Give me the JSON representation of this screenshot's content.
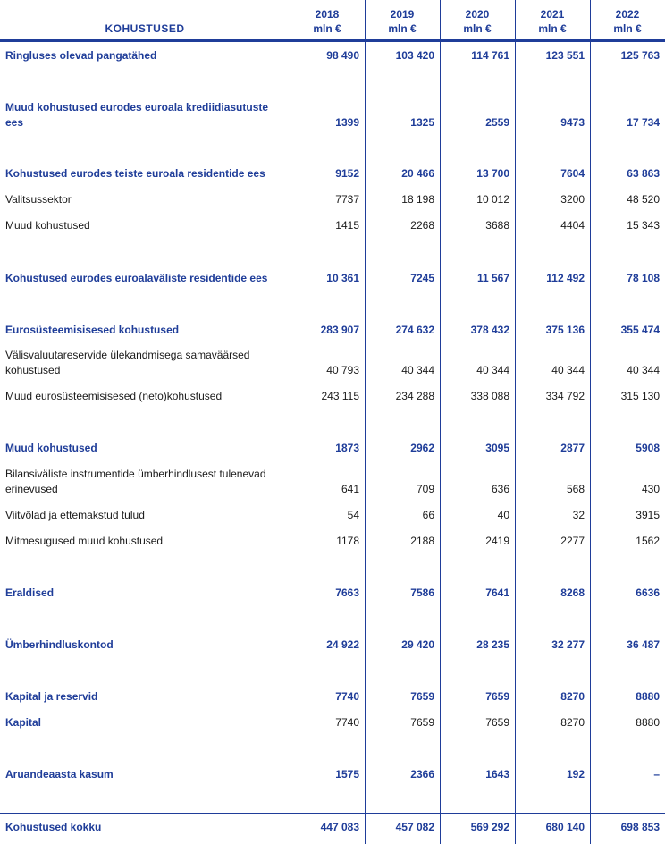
{
  "header": {
    "title": "KOHUSTUSED",
    "columns": [
      {
        "year": "2018",
        "unit": "mln €"
      },
      {
        "year": "2019",
        "unit": "mln €"
      },
      {
        "year": "2020",
        "unit": "mln €"
      },
      {
        "year": "2021",
        "unit": "mln €"
      },
      {
        "year": "2022",
        "unit": "mln €"
      }
    ]
  },
  "colors": {
    "accent": "#1f3d99",
    "text": "#1a1a1a"
  },
  "rows": [
    {
      "label": "Ringluses olevad pangatähed",
      "style": "bold",
      "values": [
        "98 490",
        "103 420",
        "114 761",
        "123 551",
        "125 763"
      ]
    },
    {
      "label": "Muud kohustused eurodes euroala krediidiasutuste ees",
      "style": "bold",
      "values": [
        "1399",
        "1325",
        "2559",
        "9473",
        "17 734"
      ]
    },
    {
      "label": "Kohustused eurodes teiste euroala residentide ees",
      "style": "bold",
      "values": [
        "9152",
        "20 466",
        "13 700",
        "7604",
        "63 863"
      ]
    },
    {
      "label": "Valitsussektor",
      "style": "normal",
      "values": [
        "7737",
        "18 198",
        "10 012",
        "3200",
        "48 520"
      ]
    },
    {
      "label": "Muud kohustused",
      "style": "normal",
      "values": [
        "1415",
        "2268",
        "3688",
        "4404",
        "15 343"
      ]
    },
    {
      "label": "Kohustused eurodes euroalaväliste residentide ees",
      "style": "bold",
      "values": [
        "10 361",
        "7245",
        "11 567",
        "112 492",
        "78 108"
      ]
    },
    {
      "label": "Eurosüsteemisisesed kohustused",
      "style": "bold",
      "values": [
        "283 907",
        "274 632",
        "378 432",
        "375 136",
        "355 474"
      ]
    },
    {
      "label": "Välisvaluutareservide ülekandmisega samaväärsed kohustused",
      "style": "normal",
      "values": [
        "40 793",
        "40 344",
        "40 344",
        "40 344",
        "40 344"
      ]
    },
    {
      "label": "Muud eurosüsteemisisesed (neto)kohustused",
      "style": "normal",
      "values": [
        "243 115",
        "234 288",
        "338 088",
        "334 792",
        "315 130"
      ]
    },
    {
      "label": "Muud kohustused",
      "style": "bold",
      "values": [
        "1873",
        "2962",
        "3095",
        "2877",
        "5908"
      ]
    },
    {
      "label": "Bilansiväliste instrumentide ümberhindlusest tulenevad erinevused",
      "style": "normal",
      "values": [
        "641",
        "709",
        "636",
        "568",
        "430"
      ]
    },
    {
      "label": "Viitvõlad ja ettemakstud tulud",
      "style": "normal",
      "values": [
        "54",
        "66",
        "40",
        "32",
        "3915"
      ]
    },
    {
      "label": "Mitmesugused muud kohustused",
      "style": "normal",
      "values": [
        "1178",
        "2188",
        "2419",
        "2277",
        "1562"
      ]
    },
    {
      "label": "Eraldised",
      "style": "bold",
      "values": [
        "7663",
        "7586",
        "7641",
        "8268",
        "6636"
      ]
    },
    {
      "label": "Ümberhindluskontod",
      "style": "bold",
      "values": [
        "24 922",
        "29 420",
        "28 235",
        "32 277",
        "36 487"
      ]
    },
    {
      "label": "Kapital ja reservid",
      "style": "bold",
      "values": [
        "7740",
        "7659",
        "7659",
        "8270",
        "8880"
      ]
    },
    {
      "label": "Kapital",
      "style": "lblbold",
      "values": [
        "7740",
        "7659",
        "7659",
        "8270",
        "8880"
      ]
    },
    {
      "label": "Aruandeaasta kasum",
      "style": "bold",
      "values": [
        "1575",
        "2366",
        "1643",
        "192",
        "–"
      ]
    },
    {
      "label": "Kohustused kokku",
      "style": "bold",
      "values": [
        "447 083",
        "457 082",
        "569 292",
        "680 140",
        "698 853"
      ]
    }
  ]
}
